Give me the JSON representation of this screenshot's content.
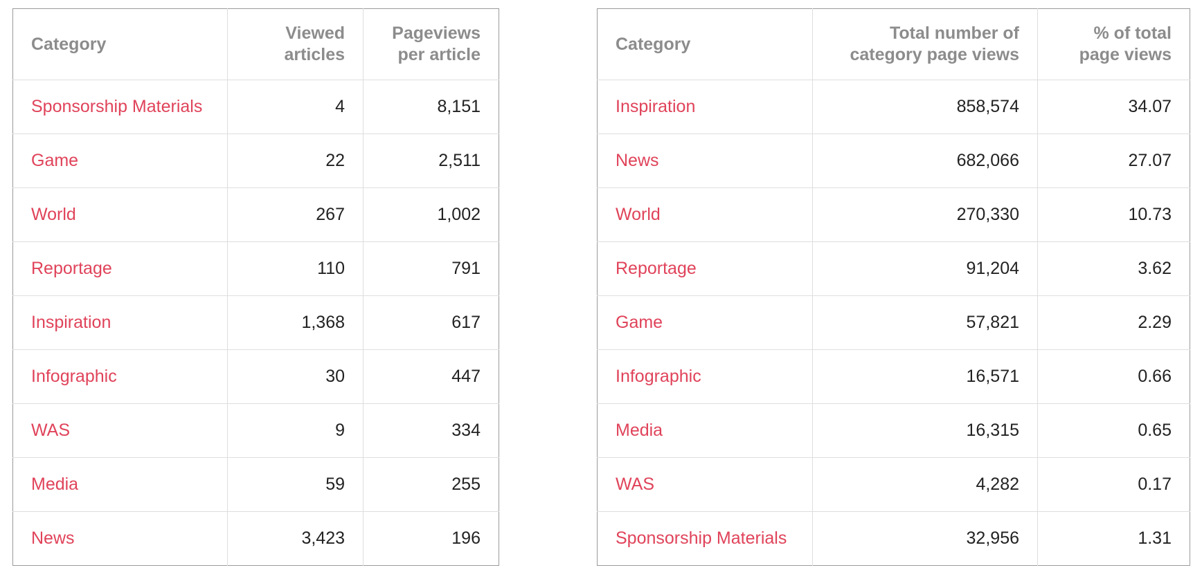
{
  "left_table": {
    "headers": [
      "Category",
      "Viewed articles",
      "Pageviews per article"
    ],
    "rows": [
      [
        "Sponsorship Materials",
        "4",
        "8,151"
      ],
      [
        "Game",
        "22",
        "2,511"
      ],
      [
        "World",
        "267",
        "1,002"
      ],
      [
        "Reportage",
        "110",
        "791"
      ],
      [
        "Inspiration",
        "1,368",
        "617"
      ],
      [
        "Infographic",
        "30",
        "447"
      ],
      [
        "WAS",
        "9",
        "334"
      ],
      [
        "Media",
        "59",
        "255"
      ],
      [
        "News",
        "3,423",
        "196"
      ]
    ]
  },
  "right_table": {
    "headers": [
      "Category",
      "Total number of category page views",
      "% of total page views"
    ],
    "rows": [
      [
        "Inspiration",
        "858,574",
        "34.07"
      ],
      [
        "News",
        "682,066",
        "27.07"
      ],
      [
        "World",
        "270,330",
        "10.73"
      ],
      [
        "Reportage",
        "91,204",
        "3.62"
      ],
      [
        "Game",
        "57,821",
        "2.29"
      ],
      [
        "Infographic",
        "16,571",
        "0.66"
      ],
      [
        "Media",
        "16,315",
        "0.65"
      ],
      [
        "WAS",
        "4,282",
        "0.17"
      ],
      [
        "Sponsorship Materials",
        "32,956",
        "1.31"
      ]
    ]
  },
  "colors": {
    "category_link": "#e0435a",
    "header_text": "#8c8c8c",
    "value_text": "#222222",
    "border": "#9a9a9a",
    "grid": "#dedede"
  }
}
